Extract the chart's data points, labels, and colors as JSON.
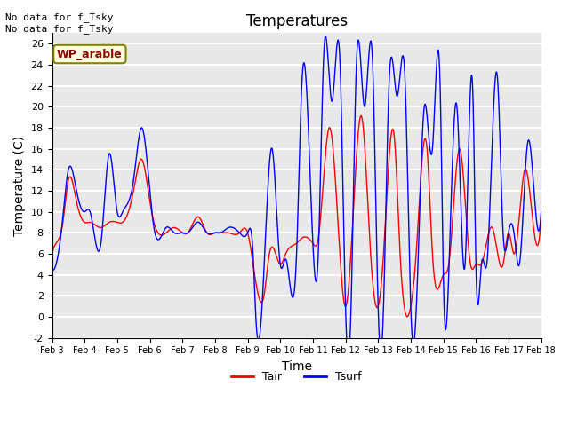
{
  "title": "Temperatures",
  "xlabel": "Time",
  "ylabel": "Temperature (C)",
  "ylim": [
    -2,
    27
  ],
  "xlim": [
    0,
    360
  ],
  "background_color": "#e8e8e8",
  "grid_color": "white",
  "annotation_text": "No data for f_Tsky\nNo data for f_Tsky",
  "legend_label_text": "WP_arable",
  "legend_line_labels": [
    "Tair",
    "Tsurf"
  ],
  "legend_line_colors": [
    "red",
    "blue"
  ],
  "xtick_labels": [
    "Feb 3",
    "Feb 4",
    "Feb 5",
    "Feb 6",
    "Feb 7",
    "Feb 8",
    "Feb 9",
    "Feb 10",
    "Feb 11",
    "Feb 12",
    "Feb 13",
    "Feb 14",
    "Feb 15",
    "Feb 16",
    "Feb 17",
    "Feb 18"
  ],
  "xtick_positions": [
    0,
    24,
    48,
    72,
    96,
    120,
    144,
    168,
    192,
    216,
    240,
    264,
    288,
    312,
    336,
    360
  ],
  "ytick_labels": [
    "-2",
    "0",
    "2",
    "4",
    "6",
    "8",
    "10",
    "12",
    "14",
    "16",
    "18",
    "20",
    "22",
    "24",
    "26"
  ],
  "ytick_values": [
    -2,
    0,
    2,
    4,
    6,
    8,
    10,
    12,
    14,
    16,
    18,
    20,
    22,
    24,
    26
  ]
}
